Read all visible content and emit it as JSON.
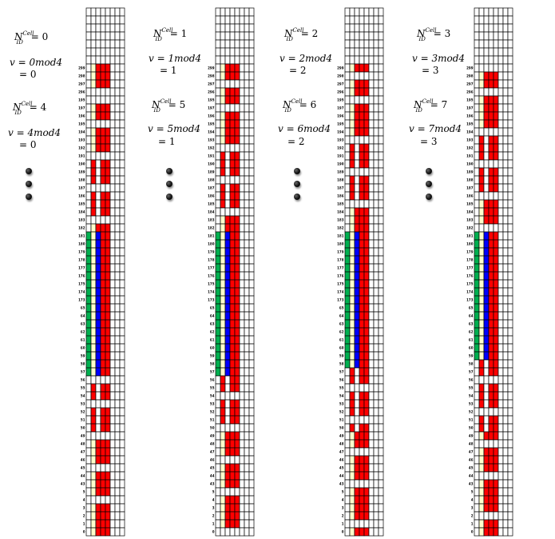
{
  "panels": [
    {
      "cell_a": "0",
      "v_a": "0mod4",
      "res_a": "= 0",
      "cell_b": "4",
      "v_b": "4mod4",
      "res_b": "= 0",
      "color_rows": [
        "wwwwwwww",
        "wwwwwwww",
        "wwwwwwww",
        "wwwwwwww",
        "wwwwwwww",
        "wwwwwwww",
        "wwwwwwww",
        "wyrrrwww",
        "wyrrrwww",
        "wyrrrwww",
        "wwwwwwww",
        "wwwwwwww",
        "wyrrrwww",
        "wyrrrwww",
        "wwwwwwww",
        "wyrrrwww",
        "wyrrrwww",
        "wyrrrwww",
        "wwwwwwww",
        "wrwrrwww",
        "wrwrrwww",
        "wrwrrwww",
        "wwwwwwww",
        "wrwrrwww",
        "wrwrrwww",
        "wrwrrwww",
        "wwwwwwww",
        "wyrrrwww",
        "gybrrwww",
        "gybrrwww",
        "gybrrwww",
        "gybrrwww",
        "gybrrwww",
        "gybrrwww",
        "gybrrwww",
        "gybrrwww",
        "gybrrwww",
        "gybrrwww",
        "gybrrwww",
        "gybrrwww",
        "gybrrwww",
        "gybrrwww",
        "gybrrwww",
        "gybrrwww",
        "gybrrwww",
        "gybrrwww",
        "wwwwwwww",
        "wrwrrwww",
        "wrwrrwww",
        "wwwwwwww",
        "wrwrrwww",
        "wrwrrwww",
        "wrwrrwww",
        "wwwwwwww",
        "wyrrrwww",
        "wyrrrwww",
        "wyrrrwww",
        "wwwwwwww",
        "wyrrrwww",
        "wyrrrwww",
        "wyrrrwww",
        "wwwwwwww",
        "wyrrrwww",
        "wyrrrwww",
        "wyrrrwww",
        "wyrrrwww"
      ]
    },
    {
      "cell_a": "1",
      "v_a": "1mod4",
      "res_a": "= 1",
      "cell_b": "5",
      "v_b": "5mod4",
      "res_b": "= 1",
      "color_rows": [
        "wwwwwwww",
        "wwwwwwww",
        "wwwwwwww",
        "wwwwwwww",
        "wwwwwwww",
        "wwwwwwww",
        "wwwwwwww",
        "wyrrrwww",
        "wyrrrwww",
        "wwwwwwww",
        "wyrrrwww",
        "wyrrrwww",
        "wwwwwwww",
        "wyrrrwww",
        "wyrrrwww",
        "wyrrrwww",
        "wyrrrwww",
        "wwwwwwww",
        "wrwrrwww",
        "wrwrrwww",
        "wrwrrwww",
        "wwwwwwww",
        "wrwrrwww",
        "wrwrrwww",
        "wrwrrwww",
        "wwwwwwww",
        "wyrrrwww",
        "wyrrrwww",
        "gybrrwww",
        "gybrrwww",
        "gybrrwww",
        "gybrrwww",
        "gybrrwww",
        "gybrrwww",
        "gybrrwww",
        "gybrrwww",
        "gybrrwww",
        "gybrrwww",
        "gybrrwww",
        "gybrrwww",
        "gybrrwww",
        "gybrrwww",
        "gybrrwww",
        "gybrrwww",
        "gybrrwww",
        "gybrrwww",
        "wrwrrwww",
        "wrwrrwww",
        "wwwwwwww",
        "wrwrrwww",
        "wrwrrwww",
        "wrwrrwww",
        "wwwwwwww",
        "wyrrrwww",
        "wyrrrwww",
        "wyrrrwww",
        "wwwwwwww",
        "wyrrrwww",
        "wyrrrwww",
        "wyrrrwww",
        "wwwwwwww",
        "wyrrrwww",
        "wyrrrwww",
        "wyrrrwww",
        "wyrrrwww",
        "wwwwwwww"
      ]
    },
    {
      "cell_a": "2",
      "v_a": "2mod4",
      "res_a": "= 2",
      "cell_b": "6",
      "v_b": "6mod4",
      "res_b": "= 2",
      "color_rows": [
        "wwwwwwww",
        "wwwwwwww",
        "wwwwwwww",
        "wwwwwwww",
        "wwwwwwww",
        "wwwwwwww",
        "wwwwwwww",
        "wyrrrwww",
        "wwwwwwww",
        "wyrrrwww",
        "wyrrrwww",
        "wwwwwwww",
        "wyrrrwww",
        "wyrrrwww",
        "wyrrrwww",
        "wyrrrwww",
        "wwwwwwww",
        "wrwrrwww",
        "wrwrrwww",
        "wrwrrwww",
        "wwwwwwww",
        "wrwrrwww",
        "wrwrrwww",
        "wrwrrwww",
        "wwwwwwww",
        "wyrrrwww",
        "wyrrrwww",
        "wyrrrwww",
        "gybrrwww",
        "gybrrwww",
        "gybrrwww",
        "gybrrwww",
        "gybrrwww",
        "gybrrwww",
        "gybrrwww",
        "gybrrwww",
        "gybrrwww",
        "gybrrwww",
        "gybrrwww",
        "gybrrwww",
        "gybrrwww",
        "gybrrwww",
        "gybrrwww",
        "gybrrwww",
        "gybrrwww",
        "wrwrrwww",
        "wrwrrwww",
        "wwwwwwww",
        "wrwrrwww",
        "wrwrrwww",
        "wrwrrwww",
        "wwwwwwww",
        "wrwrrwww",
        "wyrrrwww",
        "wyrrrwww",
        "wwwwwwww",
        "wyrrrwww",
        "wyrrrwww",
        "wyrrrwww",
        "wwwwwwww",
        "wyrrrwww",
        "wyrrrwww",
        "wyrrrwww",
        "wyrrrwww",
        "wwwwwwww",
        "wyrrrwww"
      ]
    },
    {
      "cell_a": "3",
      "v_a": "3mod4",
      "res_a": "= 3",
      "cell_b": "7",
      "v_b": "7mod4",
      "res_b": "= 3",
      "color_rows": [
        "wwwwwwww",
        "wwwwwwww",
        "wwwwwwww",
        "wwwwwwww",
        "wwwwwwww",
        "wwwwwwww",
        "wwwwwwww",
        "wwwwwwww",
        "wyrrrwww",
        "wyrrrwww",
        "wwwwwwww",
        "wyrrrwww",
        "wyrrrwww",
        "wyrrrwww",
        "wyrrrwww",
        "wwwwwwww",
        "wrwrrwww",
        "wrwrrwww",
        "wrwrrwww",
        "wwwwwwww",
        "wrwrrwww",
        "wrwrrwww",
        "wrwrrwww",
        "wwwwwwww",
        "wyrrrwww",
        "wyrrrwww",
        "wyrrrwww",
        "wwwwwwww",
        "gybrrwww",
        "gybrrwww",
        "gybrrwww",
        "gybrrwww",
        "gybrrwww",
        "gybrrwww",
        "gybrrwww",
        "gybrrwww",
        "gybrrwww",
        "gybrrwww",
        "gybrrwww",
        "gybrrwww",
        "gybrrwww",
        "gybrrwww",
        "gybrrwww",
        "gybrrwww",
        "wrwrrwww",
        "wrwrrwww",
        "wwwwwwww",
        "wrwrrwww",
        "wrwrrwww",
        "wrwrrwww",
        "wwwwwwww",
        "wrwrrwww",
        "wrwrrwww",
        "wyrrrwww",
        "wwwwwwww",
        "wyrrrwww",
        "wyrrrwww",
        "wyrrrwww",
        "wwwwwwww",
        "wyrrrwww",
        "wyrrrwww",
        "wyrrrwww",
        "wyrrrwww",
        "wwwwwwww",
        "wyrrrwww",
        "wyrrrwww"
      ]
    }
  ],
  "row_labels": [
    "",
    "",
    "",
    "",
    "",
    "",
    "",
    "299",
    "298",
    "297",
    "296",
    "195",
    "197",
    "196",
    "195",
    "194",
    "193",
    "192",
    "191",
    "190",
    "189",
    "188",
    "187",
    "186",
    "185",
    "184",
    "183",
    "182",
    "181",
    "180",
    "179",
    "178",
    "177",
    "176",
    "175",
    "174",
    "173",
    "65",
    "64",
    "63",
    "62",
    "61",
    "60",
    "59",
    "58",
    "57",
    "56",
    "55",
    "54",
    "53",
    "52",
    "51",
    "50",
    "49",
    "48",
    "47",
    "46",
    "45",
    "44",
    "43",
    "5",
    "4",
    "3",
    "2",
    "1",
    "0"
  ],
  "colors": {
    "r": "#ff0000",
    "y": "#ffffcc",
    "b": "#0000ff",
    "g": "#00b050",
    "w": "#ffffff",
    "grid": "#000000"
  }
}
